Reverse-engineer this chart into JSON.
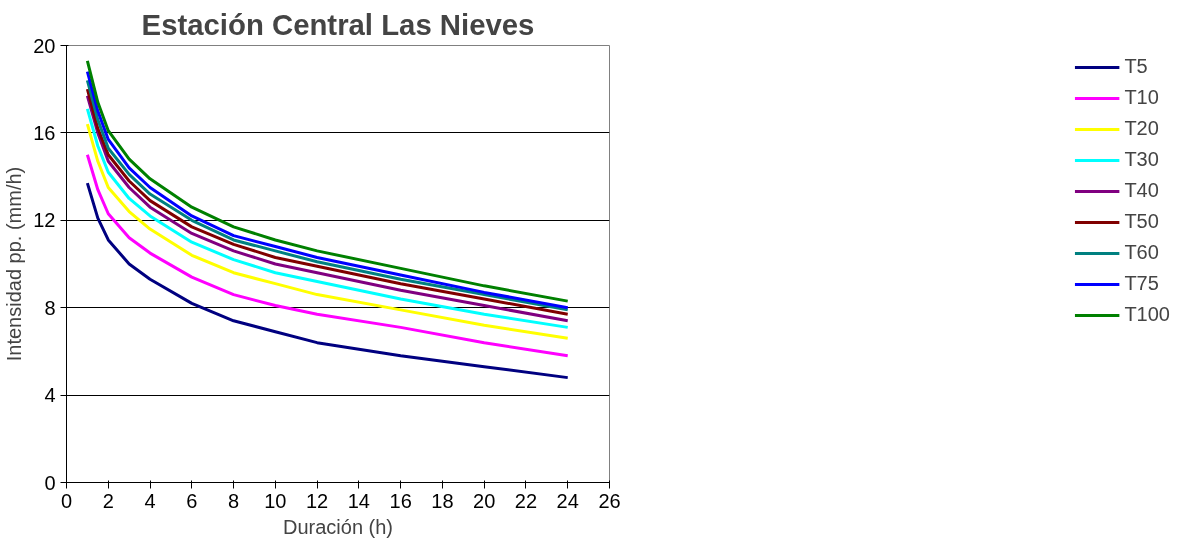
{
  "chart_data": {
    "type": "line",
    "title": "Estación Central Las Nieves",
    "xlabel": "Duración (h)",
    "ylabel": "Intensidad pp. (mm/h)",
    "x": [
      1,
      1.5,
      2,
      3,
      4,
      6,
      8,
      10,
      12,
      16,
      20,
      24
    ],
    "xlim": [
      0,
      26
    ],
    "xticks": [
      0,
      2,
      4,
      6,
      8,
      10,
      12,
      14,
      16,
      18,
      20,
      22,
      24,
      26
    ],
    "ylim": [
      0,
      20
    ],
    "yticks": [
      0,
      4,
      8,
      12,
      16,
      20
    ],
    "grid": "y",
    "legend": "right",
    "marker": "none",
    "line_style": "solid",
    "series": [
      {
        "name": "T5",
        "color": "#000080",
        "values": [
          13.7,
          12.1,
          11.1,
          10.0,
          9.3,
          8.2,
          7.4,
          6.9,
          6.4,
          5.8,
          5.3,
          4.8
        ]
      },
      {
        "name": "T10",
        "color": "#ff00ff",
        "values": [
          15.0,
          13.4,
          12.3,
          11.2,
          10.5,
          9.4,
          8.6,
          8.1,
          7.7,
          7.1,
          6.4,
          5.8
        ]
      },
      {
        "name": "T20",
        "color": "#ffff00",
        "values": [
          16.4,
          14.7,
          13.5,
          12.4,
          11.6,
          10.4,
          9.6,
          9.1,
          8.6,
          7.9,
          7.2,
          6.6
        ]
      },
      {
        "name": "T30",
        "color": "#00ffff",
        "values": [
          17.1,
          15.4,
          14.2,
          13.0,
          12.2,
          11.0,
          10.2,
          9.6,
          9.2,
          8.4,
          7.7,
          7.1
        ]
      },
      {
        "name": "T40",
        "color": "#800080",
        "values": [
          17.7,
          16.0,
          14.7,
          13.5,
          12.6,
          11.4,
          10.6,
          10.0,
          9.6,
          8.8,
          8.1,
          7.4
        ]
      },
      {
        "name": "T50",
        "color": "#800000",
        "values": [
          18.0,
          16.2,
          15.0,
          13.8,
          12.9,
          11.7,
          10.9,
          10.3,
          9.9,
          9.1,
          8.4,
          7.7
        ]
      },
      {
        "name": "T60",
        "color": "#008080",
        "values": [
          18.4,
          16.6,
          15.3,
          14.1,
          13.2,
          12.0,
          11.1,
          10.6,
          10.1,
          9.3,
          8.6,
          7.9
        ]
      },
      {
        "name": "T75",
        "color": "#0000ff",
        "values": [
          18.8,
          17.0,
          15.7,
          14.4,
          13.5,
          12.2,
          11.3,
          10.8,
          10.3,
          9.5,
          8.7,
          8.0
        ]
      },
      {
        "name": "T100",
        "color": "#008000",
        "values": [
          19.3,
          17.4,
          16.1,
          14.8,
          13.9,
          12.6,
          11.7,
          11.1,
          10.6,
          9.8,
          9.0,
          8.3
        ]
      }
    ]
  }
}
